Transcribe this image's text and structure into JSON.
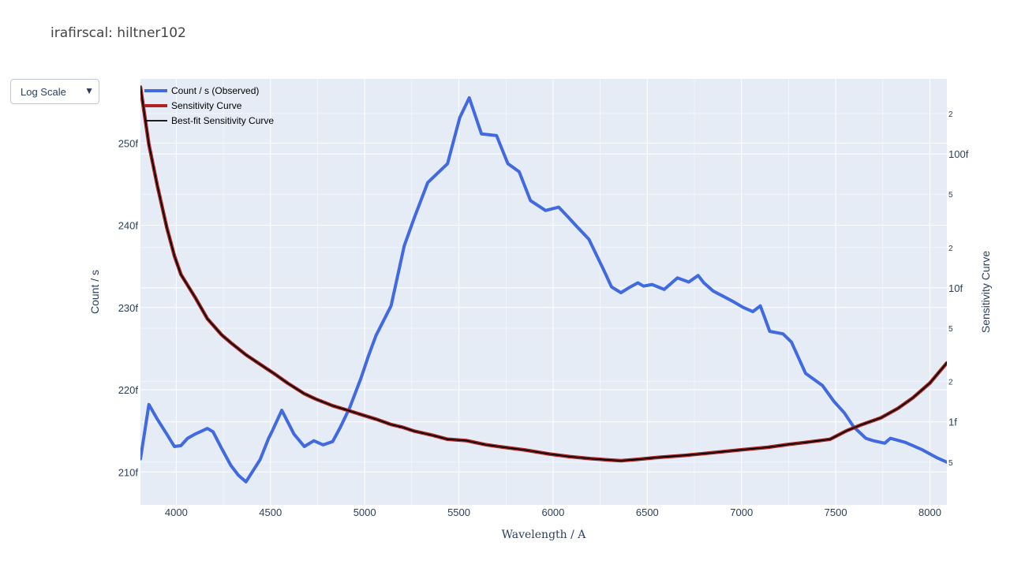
{
  "title": "irafirscal: hiltner102",
  "dropdown": {
    "label": "Log Scale",
    "arrow": "▼"
  },
  "colors": {
    "observed": "#4169e1",
    "sensitivity": "#b22222",
    "bestfit": "#000000",
    "plot_bg": "#e5ecf6",
    "grid": "#ffffff"
  },
  "chart_data": {
    "type": "line",
    "title": "irafirscal: hiltner102",
    "xlabel": "Wavelength / A",
    "ylabel": "Count / s",
    "y2label": "Sensitivity Curve",
    "xlim": [
      3810,
      8090
    ],
    "ylim": [
      206.0,
      257.8
    ],
    "y2_log_lim": [
      -15.62,
      -12.44
    ],
    "y2_scale": "log",
    "grid": true,
    "legend_position": "top-left",
    "x_ticks": [
      "4000",
      "4500",
      "5000",
      "5500",
      "6000",
      "6500",
      "7000",
      "7500",
      "8000"
    ],
    "y_ticks": [
      "210f",
      "220f",
      "230f",
      "240f",
      "250f"
    ],
    "y2_major_ticks": [
      "1f",
      "10f",
      "100f"
    ],
    "y2_minor_ticks": [
      "5",
      "2",
      "5",
      "2",
      "5",
      "2",
      "5",
      "2"
    ],
    "series": [
      {
        "name": "Count / s (Observed)",
        "axis": "y",
        "x": [
          3810,
          3855,
          3900,
          3950,
          3990,
          4025,
          4060,
          4100,
          4165,
          4195,
          4240,
          4290,
          4330,
          4370,
          4445,
          4490,
          4510,
          4560,
          4625,
          4680,
          4730,
          4780,
          4830,
          4870,
          4920,
          4980,
          5020,
          5060,
          5140,
          5210,
          5265,
          5335,
          5440,
          5505,
          5555,
          5620,
          5700,
          5760,
          5820,
          5880,
          5960,
          6030,
          6080,
          6120,
          6190,
          6270,
          6310,
          6360,
          6410,
          6450,
          6480,
          6525,
          6590,
          6660,
          6720,
          6770,
          6800,
          6850,
          6900,
          6950,
          7010,
          7060,
          7100,
          7150,
          7220,
          7265,
          7340,
          7430,
          7490,
          7545,
          7595,
          7660,
          7700,
          7760,
          7790,
          7870,
          7960,
          8040,
          8090
        ],
        "y": [
          211.6,
          218.2,
          216.4,
          214.6,
          213.1,
          213.2,
          214.1,
          214.6,
          215.3,
          214.9,
          212.9,
          210.8,
          209.6,
          208.8,
          211.5,
          214.1,
          215.0,
          217.5,
          214.6,
          213.1,
          213.8,
          213.3,
          213.7,
          215.4,
          217.8,
          221.4,
          224.1,
          226.6,
          230.2,
          237.5,
          241.0,
          245.2,
          247.5,
          253.1,
          255.5,
          251.1,
          250.9,
          247.5,
          246.5,
          243.0,
          241.8,
          242.2,
          241.0,
          240.0,
          238.3,
          234.5,
          232.5,
          231.8,
          232.5,
          233.0,
          232.6,
          232.8,
          232.2,
          233.6,
          233.1,
          233.9,
          233.0,
          232.0,
          231.4,
          230.8,
          230.0,
          229.5,
          230.2,
          227.1,
          226.8,
          225.8,
          222.0,
          220.5,
          218.6,
          217.2,
          215.5,
          214.1,
          213.8,
          213.5,
          214.1,
          213.6,
          212.7,
          211.7,
          211.2
        ]
      },
      {
        "name": "Sensitivity Curve",
        "axis": "y2",
        "x": [
          3810,
          3855,
          3900,
          3950,
          3990,
          4025,
          4060,
          4100,
          4165,
          4240,
          4290,
          4370,
          4445,
          4530,
          4590,
          4680,
          4740,
          4830,
          4900,
          4990,
          5060,
          5140,
          5200,
          5265,
          5360,
          5440,
          5540,
          5640,
          5740,
          5850,
          5980,
          6090,
          6200,
          6300,
          6360,
          6450,
          6560,
          6700,
          6850,
          6990,
          7140,
          7240,
          7360,
          7470,
          7560,
          7640,
          7740,
          7830,
          7910,
          8000,
          8090
        ],
        "log_y": [
          -12.5,
          -12.93,
          -13.24,
          -13.55,
          -13.76,
          -13.9,
          -13.98,
          -14.07,
          -14.23,
          -14.35,
          -14.41,
          -14.5,
          -14.57,
          -14.65,
          -14.71,
          -14.79,
          -14.83,
          -14.88,
          -14.91,
          -14.95,
          -14.98,
          -15.02,
          -15.04,
          -15.07,
          -15.1,
          -15.13,
          -15.14,
          -15.17,
          -15.19,
          -15.21,
          -15.24,
          -15.26,
          -15.275,
          -15.285,
          -15.29,
          -15.28,
          -15.265,
          -15.25,
          -15.23,
          -15.21,
          -15.19,
          -15.17,
          -15.15,
          -15.13,
          -15.065,
          -15.02,
          -14.97,
          -14.9,
          -14.82,
          -14.71,
          -14.56
        ]
      },
      {
        "name": "Best-fit Sensitivity Curve",
        "axis": "y2",
        "x": [
          3810,
          3855,
          3900,
          3950,
          3990,
          4025,
          4060,
          4100,
          4165,
          4240,
          4290,
          4370,
          4445,
          4530,
          4590,
          4680,
          4740,
          4830,
          4900,
          4990,
          5060,
          5140,
          5200,
          5265,
          5360,
          5440,
          5540,
          5640,
          5740,
          5850,
          5980,
          6090,
          6200,
          6300,
          6360,
          6450,
          6560,
          6700,
          6850,
          6990,
          7140,
          7240,
          7360,
          7470,
          7560,
          7640,
          7740,
          7830,
          7910,
          8000,
          8090
        ],
        "log_y": [
          -12.5,
          -12.93,
          -13.24,
          -13.55,
          -13.76,
          -13.9,
          -13.98,
          -14.07,
          -14.23,
          -14.35,
          -14.41,
          -14.5,
          -14.57,
          -14.65,
          -14.71,
          -14.79,
          -14.83,
          -14.88,
          -14.91,
          -14.95,
          -14.98,
          -15.02,
          -15.04,
          -15.07,
          -15.1,
          -15.13,
          -15.14,
          -15.17,
          -15.19,
          -15.21,
          -15.24,
          -15.26,
          -15.275,
          -15.285,
          -15.29,
          -15.28,
          -15.265,
          -15.25,
          -15.23,
          -15.21,
          -15.19,
          -15.17,
          -15.15,
          -15.13,
          -15.065,
          -15.02,
          -14.97,
          -14.9,
          -14.82,
          -14.71,
          -14.56
        ]
      }
    ]
  }
}
